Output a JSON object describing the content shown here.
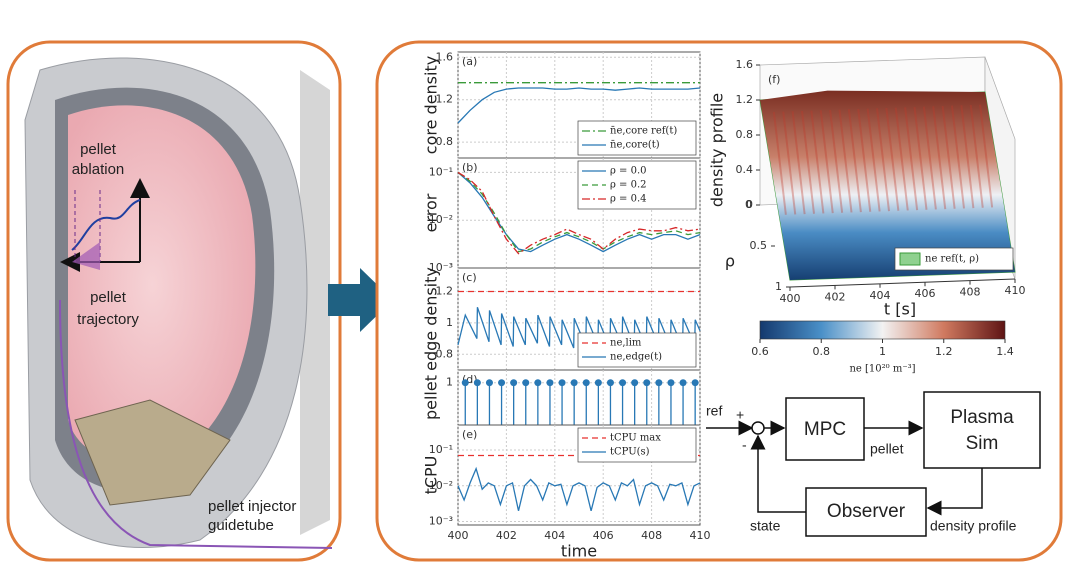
{
  "illustration": {
    "ablation_label": [
      "pellet",
      "ablation"
    ],
    "trajectory_label": [
      "pellet",
      "trajectory"
    ],
    "injector_label": [
      "pellet injector",
      "guidetube"
    ]
  },
  "chart_data": [
    {
      "type": "line",
      "panel_label": "(a)",
      "ylabel": "core density",
      "x": [
        400,
        400.5,
        401,
        401.5,
        402,
        402.5,
        403,
        403.5,
        404,
        404.5,
        405,
        405.5,
        406,
        406.5,
        407,
        407.5,
        408,
        408.5,
        409,
        409.5,
        410
      ],
      "xlim": [
        400,
        410
      ],
      "ylim": [
        0.65,
        1.65
      ],
      "yticks": [
        0.8,
        1.2,
        1.6
      ],
      "grid": true,
      "legend": "lower right",
      "series": [
        {
          "name": "n̄e,core ref(t)",
          "color": "#3a9a3a",
          "line_style": "dashdot",
          "x": [
            400,
            410
          ],
          "values": [
            1.36,
            1.36
          ]
        },
        {
          "name": "n̄e,core(t)",
          "color": "#2878b5",
          "line_style": "solid",
          "values": [
            0.98,
            1.1,
            1.2,
            1.27,
            1.3,
            1.31,
            1.31,
            1.31,
            1.3,
            1.3,
            1.31,
            1.3,
            1.3,
            1.29,
            1.3,
            1.31,
            1.3,
            1.3,
            1.3,
            1.3,
            1.31
          ]
        }
      ]
    },
    {
      "type": "line",
      "panel_label": "(b)",
      "ylabel": "error",
      "log_y": true,
      "x": [
        400,
        400.5,
        401,
        401.5,
        402,
        402.5,
        403,
        403.5,
        404,
        404.5,
        405,
        405.5,
        406,
        406.5,
        407,
        407.5,
        408,
        408.5,
        409,
        409.5,
        410
      ],
      "xlim": [
        400,
        410
      ],
      "ylim": [
        0.001,
        0.2
      ],
      "yticks": [
        {
          "value": 0.1,
          "label": "10⁻¹"
        },
        {
          "value": 0.01,
          "label": "10⁻²"
        },
        {
          "value": 0.001,
          "label": "10⁻³"
        }
      ],
      "grid": true,
      "legend": "upper right",
      "series": [
        {
          "name": "ρ = 0.0",
          "color": "#2878b5",
          "line_style": "solid",
          "values": [
            0.1,
            0.06,
            0.03,
            0.012,
            0.005,
            0.0025,
            0.0022,
            0.003,
            0.004,
            0.005,
            0.004,
            0.003,
            0.0022,
            0.003,
            0.004,
            0.005,
            0.004,
            0.005,
            0.005,
            0.004,
            0.005
          ]
        },
        {
          "name": "ρ = 0.2",
          "color": "#3a9a3a",
          "line_style": "dashed",
          "values": [
            0.1,
            0.065,
            0.035,
            0.014,
            0.005,
            0.0022,
            0.0025,
            0.0035,
            0.0045,
            0.0055,
            0.0045,
            0.0035,
            0.0025,
            0.0035,
            0.0045,
            0.0055,
            0.005,
            0.0055,
            0.006,
            0.005,
            0.0055
          ]
        },
        {
          "name": "ρ = 0.4",
          "color": "#d62728",
          "line_style": "dashdot",
          "values": [
            0.1,
            0.07,
            0.04,
            0.012,
            0.004,
            0.002,
            0.003,
            0.004,
            0.005,
            0.0065,
            0.005,
            0.004,
            0.0025,
            0.004,
            0.0055,
            0.0065,
            0.006,
            0.006,
            0.007,
            0.006,
            0.0065
          ]
        }
      ]
    },
    {
      "type": "line",
      "panel_label": "(c)",
      "ylabel": "edge density",
      "x": [
        400,
        400.3,
        400.78,
        400.8,
        401.28,
        401.3,
        401.78,
        401.8,
        402.28,
        402.3,
        402.78,
        402.8,
        403.28,
        403.3,
        403.78,
        403.8,
        404.28,
        404.3,
        404.78,
        404.8,
        405.28,
        405.3,
        405.78,
        405.8,
        406.28,
        406.3,
        406.78,
        406.8,
        407.28,
        407.3,
        407.78,
        407.8,
        408.28,
        408.3,
        408.78,
        408.8,
        409.28,
        409.3,
        409.78,
        409.8,
        410
      ],
      "xlim": [
        400,
        410
      ],
      "ylim": [
        0.7,
        1.35
      ],
      "yticks": [
        0.8,
        1,
        1.2
      ],
      "grid": true,
      "legend": "lower right",
      "series": [
        {
          "name": "ne,lim",
          "color": "#e8312f",
          "line_style": "dashed",
          "x": [
            400,
            410
          ],
          "values": [
            1.2,
            1.2
          ]
        },
        {
          "name": "ne,edge(t)",
          "color": "#2878b5",
          "line_style": "solid",
          "values": [
            0.86,
            1.05,
            0.9,
            1.1,
            0.88,
            1.08,
            0.86,
            1.06,
            0.85,
            1.04,
            0.86,
            1.03,
            0.87,
            1.05,
            0.85,
            1.04,
            0.86,
            1.02,
            0.84,
            1.03,
            0.85,
            1.04,
            0.86,
            1.02,
            0.84,
            1.03,
            0.86,
            1.04,
            0.85,
            1.02,
            0.84,
            1.04,
            0.86,
            1.03,
            0.85,
            1.02,
            0.84,
            1.03,
            0.86,
            1.02,
            0.95
          ]
        }
      ]
    },
    {
      "type": "stem",
      "panel_label": "(d)",
      "ylabel": "pellet",
      "x": [
        400.3,
        400.8,
        401.3,
        401.8,
        402.3,
        402.8,
        403.3,
        403.8,
        404.3,
        404.8,
        405.3,
        405.8,
        406.3,
        406.8,
        407.3,
        407.8,
        408.3,
        408.8,
        409.3,
        409.8
      ],
      "values": [
        1,
        1,
        1,
        1,
        1,
        1,
        1,
        1,
        1,
        1,
        1,
        1,
        1,
        1,
        1,
        1,
        1,
        1,
        1,
        1
      ],
      "color": "#2878b5",
      "xlim": [
        400,
        410
      ],
      "ylim": [
        0,
        1.3
      ],
      "yticks": [
        1
      ],
      "grid": true
    },
    {
      "type": "line",
      "panel_label": "(e)",
      "ylabel": "tCPU",
      "xlabel": "time",
      "log_y": true,
      "x": [
        400,
        400.25,
        400.5,
        400.75,
        401,
        401.25,
        401.5,
        401.75,
        402,
        402.25,
        402.5,
        402.75,
        403,
        403.25,
        403.5,
        403.75,
        404,
        404.25,
        404.5,
        404.75,
        405,
        405.25,
        405.5,
        405.75,
        406,
        406.25,
        406.5,
        406.75,
        407,
        407.25,
        407.5,
        407.75,
        408,
        408.25,
        408.5,
        408.75,
        409,
        409.25,
        409.5,
        409.75,
        410
      ],
      "xlim": [
        400,
        410
      ],
      "xticks": [
        400,
        402,
        404,
        406,
        408,
        410
      ],
      "ylim": [
        0.0008,
        0.5
      ],
      "yticks": [
        {
          "value": 0.1,
          "label": "10⁻¹"
        },
        {
          "value": 0.01,
          "label": "10⁻²"
        },
        {
          "value": 0.001,
          "label": "10⁻³"
        }
      ],
      "grid": true,
      "legend": "upper right",
      "series": [
        {
          "name": "tCPU max",
          "color": "#e8312f",
          "line_style": "dashed",
          "x": [
            400,
            410
          ],
          "values": [
            0.07,
            0.07
          ]
        },
        {
          "name": "tCPU(s)",
          "color": "#2878b5",
          "line_style": "solid",
          "values": [
            0.01,
            0.004,
            0.012,
            0.03,
            0.008,
            0.012,
            0.01,
            0.003,
            0.01,
            0.012,
            0.002,
            0.01,
            0.015,
            0.01,
            0.004,
            0.012,
            0.01,
            0.011,
            0.003,
            0.01,
            0.012,
            0.01,
            0.002,
            0.009,
            0.012,
            0.01,
            0.004,
            0.012,
            0.01,
            0.015,
            0.003,
            0.01,
            0.012,
            0.01,
            0.004,
            0.011,
            0.01,
            0.012,
            0.003,
            0.01,
            0.012
          ]
        }
      ]
    },
    {
      "type": "surface3d",
      "panel_label": "(f)",
      "zlabel": "density profile",
      "xlabel": "t  [s]",
      "ylabel": "ρ",
      "xlim": [
        400,
        410
      ],
      "xticks": [
        400,
        402,
        404,
        406,
        408,
        410
      ],
      "ylim": [
        0,
        1
      ],
      "yticks": [
        0,
        0.5,
        1
      ],
      "zlim": [
        0,
        1.6
      ],
      "zticks": [
        0,
        0.4,
        0.8,
        1.2,
        1.6
      ],
      "legend_name": "ne ref(t, ρ)",
      "legend_color": "#8fd18f",
      "colorbar": {
        "label": "ne [10²⁰ m⁻³]",
        "lim": [
          0.6,
          1.4
        ],
        "ticks": [
          0.6,
          0.8,
          1,
          1.2,
          1.4
        ],
        "colors": [
          "#14396e",
          "#4a90c8",
          "#f2f2f2",
          "#d07a60",
          "#5e1414"
        ]
      }
    }
  ],
  "diagram": {
    "input": "ref",
    "plus": "+",
    "minus": "-",
    "nodes": [
      {
        "label": [
          "MPC"
        ]
      },
      {
        "label": [
          "Plasma",
          "Sim"
        ]
      },
      {
        "label": [
          "Observer"
        ]
      }
    ],
    "edge_labels": {
      "control": "pellet",
      "feedback": "state",
      "measurement": "density profile"
    }
  }
}
